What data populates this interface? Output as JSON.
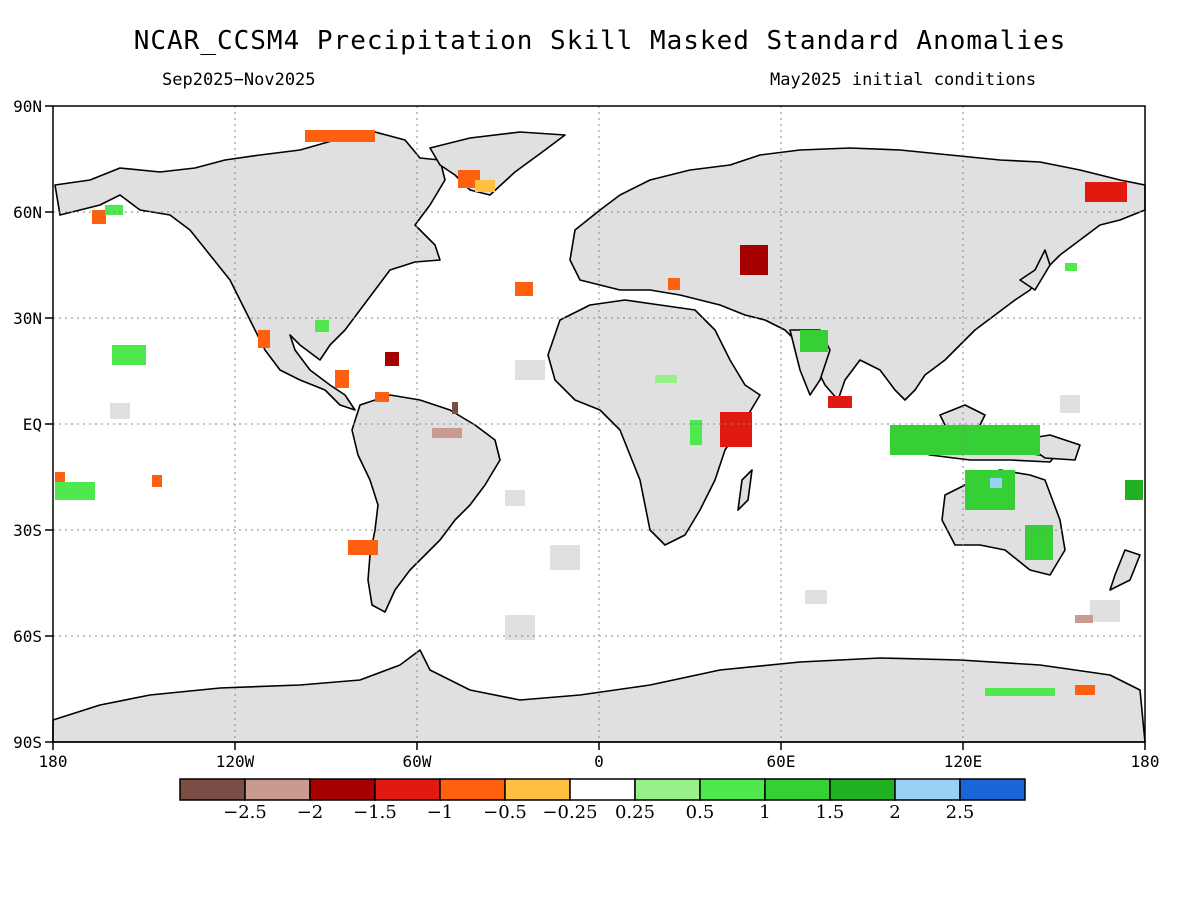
{
  "header": {
    "title": "NCAR_CCSM4 Precipitation Skill Masked Standard Anomalies",
    "subtitle_left": "Sep2025−Nov2025",
    "subtitle_right": "May2025 initial conditions"
  },
  "map": {
    "lat_labels": [
      "90N",
      "60N",
      "30N",
      "EQ",
      "30S",
      "60S",
      "90S"
    ],
    "lon_labels": [
      "180",
      "120W",
      "60W",
      "0",
      "60E",
      "120E",
      "180"
    ],
    "land_color": "#e0e0e0",
    "ocean_color": "#ffffff",
    "coast_color": "#000000"
  },
  "colorbar": {
    "colors": [
      "#7a4e45",
      "#c89a90",
      "#a60000",
      "#e01a10",
      "#ff6010",
      "#ffbf40",
      "#ffffff",
      "#99f089",
      "#4fe84f",
      "#36cf36",
      "#20b020",
      "#99d0f5",
      "#1a66d8"
    ],
    "tick_labels": [
      "−2.5",
      "−2",
      "−1.5",
      "−1",
      "−0.5",
      "−0.25",
      "0.25",
      "0.5",
      "1",
      "1.5",
      "2",
      "2.5"
    ]
  }
}
